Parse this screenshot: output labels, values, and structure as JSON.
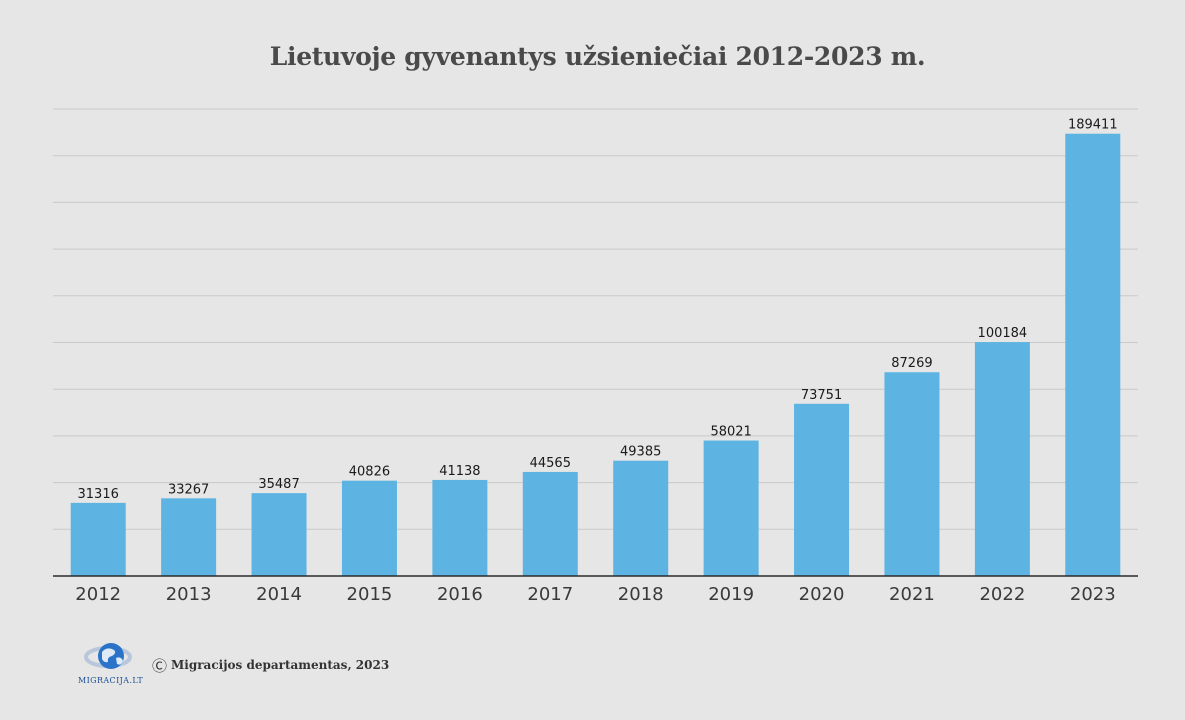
{
  "chart_data": {
    "type": "bar",
    "title": "Lietuvoje gyvenantys užsieniečiai 2012-2023 m.",
    "categories": [
      "2012",
      "2013",
      "2014",
      "2015",
      "2016",
      "2017",
      "2018",
      "2019",
      "2020",
      "2021",
      "2022",
      "2023"
    ],
    "values": [
      31316,
      33267,
      35487,
      40826,
      41138,
      44565,
      49385,
      58021,
      73751,
      87269,
      100184,
      189411
    ],
    "data_labels": [
      "31316",
      "33267",
      "35487",
      "40826",
      "41138",
      "44565",
      "49385",
      "58021",
      "73751",
      "87269",
      "100184",
      "189411"
    ],
    "ylim": [
      0,
      200000
    ],
    "grid": true,
    "bar_color": "#5db4e3",
    "xlabel": "",
    "ylabel": ""
  },
  "footer": {
    "logo_text": "MIGRACIJA.LT",
    "copyright_symbol": "Ⓒ",
    "source": "Migracijos departamentas, 2023"
  }
}
